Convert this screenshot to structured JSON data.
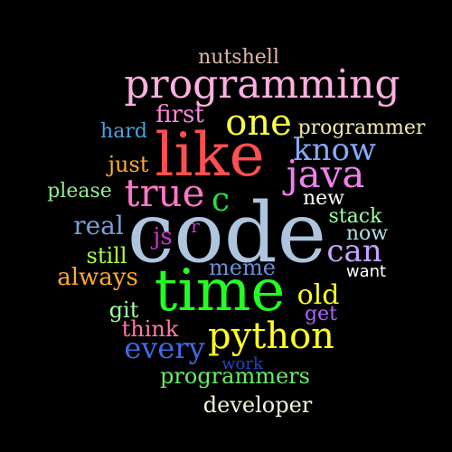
{
  "words": [
    {
      "text": "code",
      "color": "#b0c4de"
    },
    {
      "text": "time",
      "color": "#22ff22"
    },
    {
      "text": "like",
      "color": "#ff4f4f"
    },
    {
      "text": "programming",
      "color": "#ffb0e0"
    },
    {
      "text": "one",
      "color": "#ffff44"
    },
    {
      "text": "java",
      "color": "#ee82ee"
    },
    {
      "text": "true",
      "color": "#ff77cc"
    },
    {
      "text": "python",
      "color": "#ffff22"
    },
    {
      "text": "know",
      "color": "#87aaff"
    },
    {
      "text": "can",
      "color": "#c8a2ff"
    },
    {
      "text": "every",
      "color": "#4169e1"
    },
    {
      "text": "nutshell",
      "color": "#e0b8a8"
    },
    {
      "text": "programmer",
      "color": "#eee8aa"
    },
    {
      "text": "first",
      "color": "#ff88dd"
    },
    {
      "text": "hard",
      "color": "#4aa3df"
    },
    {
      "text": "just",
      "color": "#ffaa33"
    },
    {
      "text": "please",
      "color": "#90ee90"
    },
    {
      "text": "c",
      "color": "#22dd44"
    },
    {
      "text": "new",
      "color": "#ffffff"
    },
    {
      "text": "stack",
      "color": "#a0ffa0"
    },
    {
      "text": "now",
      "color": "#b0e0e6"
    },
    {
      "text": "real",
      "color": "#7b9fd4"
    },
    {
      "text": "js",
      "color": "#cc33cc"
    },
    {
      "text": "r",
      "color": "#cc33cc"
    },
    {
      "text": "still",
      "color": "#aaff44"
    },
    {
      "text": "always",
      "color": "#ffaa33"
    },
    {
      "text": "meme",
      "color": "#6a8fd8"
    },
    {
      "text": "want",
      "color": "#ffffff"
    },
    {
      "text": "old",
      "color": "#ffff22"
    },
    {
      "text": "git",
      "color": "#a0ffa0"
    },
    {
      "text": "get",
      "color": "#aa66ff"
    },
    {
      "text": "think",
      "color": "#ff7aa8"
    },
    {
      "text": "work",
      "color": "#2244cc"
    },
    {
      "text": "programmers",
      "color": "#66ee66"
    },
    {
      "text": "developer",
      "color": "#f5f5dc"
    }
  ]
}
